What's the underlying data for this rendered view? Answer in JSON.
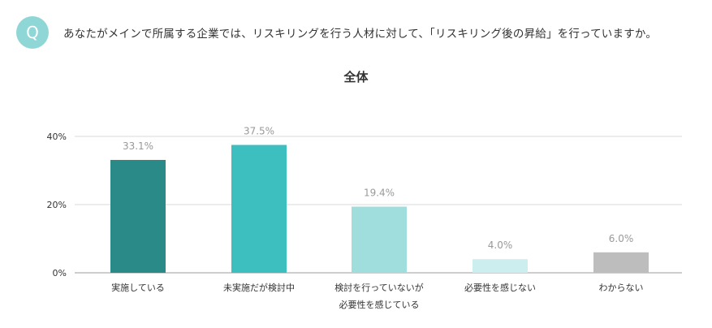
{
  "badge": {
    "letter": "Q"
  },
  "question": "あなたがメインで所属する企業では、リスキリングを行う人材に対して、「リスキリング後の昇給」を行っていますか。",
  "chart_data": {
    "type": "bar",
    "title": "全体",
    "categories": [
      [
        "実施している"
      ],
      [
        "未実施だが検討中"
      ],
      [
        "検討を行っていないが",
        "必要性を感じている"
      ],
      [
        "必要性を感じない"
      ],
      [
        "わからない"
      ]
    ],
    "values": [
      33.1,
      37.5,
      19.4,
      4.0,
      6.0
    ],
    "value_labels": [
      "33.1%",
      "37.5%",
      "19.4%",
      "4.0%",
      "6.0%"
    ],
    "colors": [
      "#2a8a88",
      "#3dbfbf",
      "#a0dddd",
      "#cdeeee",
      "#bdbdbd"
    ],
    "yticks": [
      "0%",
      "20%",
      "40%"
    ],
    "ytick_values": [
      0,
      20,
      40
    ],
    "ylim": [
      0,
      40
    ],
    "grid": true,
    "xlabel": "",
    "ylabel": ""
  }
}
